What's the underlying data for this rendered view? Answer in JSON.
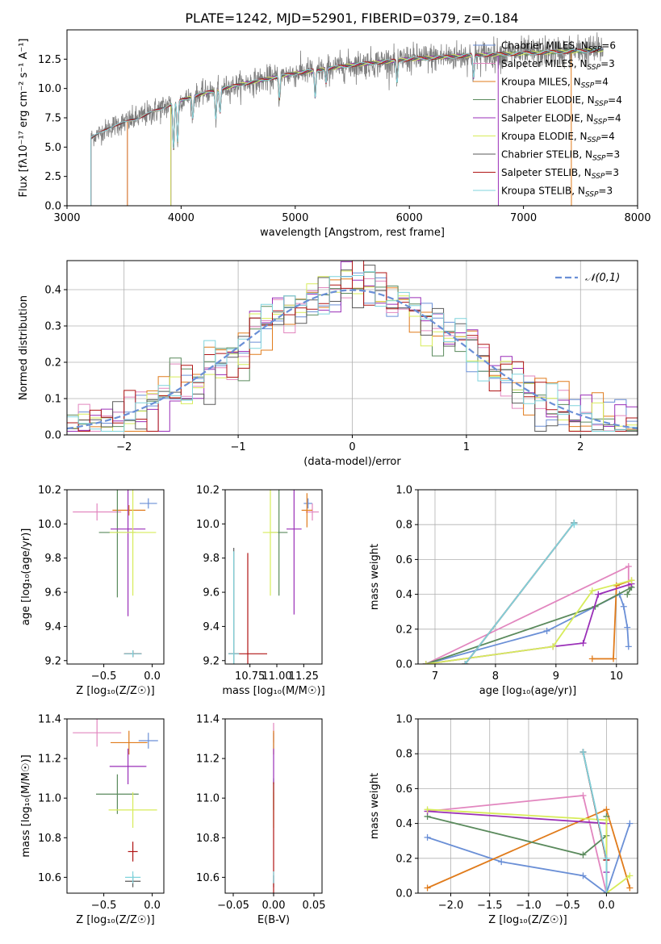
{
  "figure": {
    "title": "PLATE=1242, MJD=52901, FIBERID=0379, z=0.184"
  },
  "colors": {
    "Chabrier MILES": "#6a8fd6",
    "Salpeter MILES": "#e286bf",
    "Kroupa MILES": "#e07b1b",
    "Chabrier ELODIE": "#5a8a5c",
    "Salpeter ELODIE": "#9a2fb8",
    "Kroupa ELODIE": "#d7ec5a",
    "Chabrier STELIB": "#5a5a5a",
    "Salpeter STELIB": "#b01515",
    "Kroupa STELIB": "#7fd3dc"
  },
  "chart_data": [
    {
      "id": "spectrum",
      "type": "line",
      "title": "PLATE=1242, MJD=52901, FIBERID=0379, z=0.184",
      "xlabel": "wavelength [Angstrom, rest frame]",
      "ylabel": "Flux [fλ10⁻¹⁷ erg cm⁻² s⁻¹ A⁻¹]",
      "xlim": [
        3000,
        8000
      ],
      "ylim": [
        0,
        15
      ],
      "xticks": [
        "3000",
        "4000",
        "5000",
        "6000",
        "7000",
        "8000"
      ],
      "yticks": [
        "0.0",
        "2.5",
        "5.0",
        "7.5",
        "10.0",
        "12.5"
      ],
      "legend_position": "top-right",
      "legend": [
        {
          "label": "Chabrier MILES",
          "n": "6"
        },
        {
          "label": "Salpeter MILES",
          "n": "3"
        },
        {
          "label": "Kroupa MILES",
          "n": "4"
        },
        {
          "label": "Chabrier ELODIE",
          "n": "4"
        },
        {
          "label": "Salpeter ELODIE",
          "n": "4"
        },
        {
          "label": "Kroupa ELODIE",
          "n": "4"
        },
        {
          "label": "Chabrier STELIB",
          "n": "3"
        },
        {
          "label": "Salpeter STELIB",
          "n": "3"
        },
        {
          "label": "Kroupa STELIB",
          "n": "3"
        }
      ],
      "data_wavelength_range": [
        3210,
        7700
      ],
      "model_start_wavelength": {
        "MILES": 3530,
        "ELODIE": 3910,
        "STELIB": 3210
      },
      "model_drop_wavelength": {
        "Kroupa MILES": 7420,
        "Salpeter ELODIE": 6780
      },
      "continuum": {
        "x": [
          3210,
          3400,
          3600,
          3800,
          4000,
          4200,
          4500,
          5000,
          5500,
          6000,
          6500,
          7000,
          7500,
          7700
        ],
        "y": [
          5.8,
          6.8,
          7.4,
          8.2,
          9.0,
          9.6,
          10.3,
          11.3,
          12.0,
          12.5,
          12.8,
          13.0,
          13.2,
          13.3
        ]
      }
    },
    {
      "id": "residuals",
      "type": "histogram",
      "xlabel": "(data-model)/error",
      "ylabel": "Normed distribution",
      "xlim": [
        -2.5,
        2.5
      ],
      "ylim": [
        0,
        0.48
      ],
      "xticks": [
        "-2",
        "-1",
        "0",
        "1",
        "2"
      ],
      "yticks": [
        "0.0",
        "0.1",
        "0.2",
        "0.3",
        "0.4"
      ],
      "grid": true,
      "legend_position": "top-right",
      "reference_label": "𝒩(0,1)",
      "bin_range": [
        -2.5,
        2.5
      ],
      "bin_count": 50
    },
    {
      "id": "age_vs_Z",
      "type": "scatter",
      "xlabel": "Z [log₁₀(Z/Z☉)]",
      "ylabel": "age  [log₁₀(age/yr)]",
      "xlim": [
        -0.88,
        0.12
      ],
      "ylim": [
        9.18,
        10.2
      ],
      "xticks": [
        "-0.5",
        "0.0"
      ],
      "yticks": [
        "9.2",
        "9.4",
        "9.6",
        "9.8",
        "10.0",
        "10.2"
      ],
      "series": [
        {
          "name": "Chabrier MILES",
          "x": -0.04,
          "y": 10.12,
          "xerr": 0.09,
          "yerr": 0.03
        },
        {
          "name": "Salpeter MILES",
          "x": -0.57,
          "y": 10.07,
          "xerr": 0.25,
          "yerr": 0.05
        },
        {
          "name": "Kroupa MILES",
          "x": -0.24,
          "y": 10.08,
          "xerr": 0.17,
          "yerr": 0.03
        },
        {
          "name": "Chabrier ELODIE",
          "x": -0.36,
          "y": 9.95,
          "xerr": 0.19,
          "yerr": 0.38
        },
        {
          "name": "Salpeter ELODIE",
          "x": -0.25,
          "y": 9.97,
          "xerr": 0.18,
          "yerr": 0.51
        },
        {
          "name": "Kroupa ELODIE",
          "x": -0.2,
          "y": 9.95,
          "xerr": 0.24,
          "yerr": 0.37
        },
        {
          "name": "Chabrier STELIB",
          "x": -0.2,
          "y": 9.24,
          "xerr": 0.09,
          "yerr": 0.02
        },
        {
          "name": "Salpeter STELIB",
          "x": -0.2,
          "y": 9.24,
          "xerr": 0.09,
          "yerr": 0.02
        },
        {
          "name": "Kroupa STELIB",
          "x": -0.2,
          "y": 9.24,
          "xerr": 0.09,
          "yerr": 0.02
        }
      ]
    },
    {
      "id": "age_vs_mass",
      "type": "scatter",
      "xlabel": "mass [log₁₀(M/M☉)]",
      "ylabel": "",
      "xlim": [
        10.52,
        11.42
      ],
      "ylim": [
        9.18,
        10.2
      ],
      "xticks": [
        "10.75",
        "11.00",
        "11.25"
      ],
      "yticks": [
        "9.2",
        "9.4",
        "9.6",
        "9.8",
        "10.0",
        "10.2"
      ],
      "series": [
        {
          "name": "Chabrier MILES",
          "x": 11.29,
          "y": 10.12,
          "xerr": 0.04,
          "yerr": 0.03
        },
        {
          "name": "Salpeter MILES",
          "x": 11.33,
          "y": 10.07,
          "xerr": 0.06,
          "yerr": 0.05
        },
        {
          "name": "Kroupa MILES",
          "x": 11.28,
          "y": 10.08,
          "xerr": 0.05,
          "yerr": 0.1
        },
        {
          "name": "Chabrier ELODIE",
          "x": 11.02,
          "y": 9.95,
          "xerr": 0.08,
          "yerr": 0.37
        },
        {
          "name": "Salpeter ELODIE",
          "x": 11.16,
          "y": 9.97,
          "xerr": 0.07,
          "yerr": 0.5
        },
        {
          "name": "Kroupa ELODIE",
          "x": 10.94,
          "y": 9.95,
          "xerr": 0.07,
          "yerr": 0.37
        },
        {
          "name": "Chabrier STELIB",
          "x": 10.6,
          "y": 9.24,
          "xerr": 0.05,
          "yerr": 0.62
        },
        {
          "name": "Salpeter STELIB",
          "x": 10.73,
          "y": 9.24,
          "xerr": 0.18,
          "yerr": 0.59
        },
        {
          "name": "Kroupa STELIB",
          "x": 10.6,
          "y": 9.24,
          "xerr": 0.05,
          "yerr": 0.6
        }
      ]
    },
    {
      "id": "weight_vs_age",
      "type": "line",
      "xlabel": "age  [log₁₀(age/yr)]",
      "ylabel": "mass weight",
      "xlim": [
        6.72,
        10.35
      ],
      "ylim": [
        0,
        1
      ],
      "xticks": [
        "7",
        "8",
        "9",
        "10"
      ],
      "yticks": [
        "0.0",
        "0.2",
        "0.4",
        "0.6",
        "0.8",
        "1.0"
      ],
      "grid": true,
      "series": [
        {
          "name": "Chabrier MILES",
          "x": [
            6.85,
            8.85,
            10.05,
            10.12,
            10.18,
            10.2
          ],
          "y": [
            0.0,
            0.19,
            0.4,
            0.33,
            0.21,
            0.1
          ]
        },
        {
          "name": "Salpeter MILES",
          "x": [
            6.85,
            10.2,
            10.2
          ],
          "y": [
            0.0,
            0.56,
            0.45
          ]
        },
        {
          "name": "Kroupa MILES",
          "x": [
            9.6,
            9.95,
            10.0,
            10.25
          ],
          "y": [
            0.03,
            0.03,
            0.45,
            0.48
          ]
        },
        {
          "name": "Chabrier ELODIE",
          "x": [
            6.85,
            9.65,
            10.25,
            10.18
          ],
          "y": [
            0.0,
            0.33,
            0.44,
            0.4
          ]
        },
        {
          "name": "Salpeter ELODIE",
          "x": [
            6.85,
            8.95,
            9.45,
            9.7,
            10.25
          ],
          "y": [
            0.0,
            0.1,
            0.12,
            0.4,
            0.46
          ]
        },
        {
          "name": "Kroupa ELODIE",
          "x": [
            6.85,
            8.95,
            9.6,
            10.25
          ],
          "y": [
            0.0,
            0.1,
            0.42,
            0.48
          ]
        },
        {
          "name": "Chabrier STELIB",
          "x": [
            7.5,
            9.3,
            9.3
          ],
          "y": [
            0.0,
            0.81,
            0.81
          ]
        },
        {
          "name": "Salpeter STELIB",
          "x": [
            7.5,
            9.3
          ],
          "y": [
            0.0,
            0.81
          ]
        },
        {
          "name": "Kroupa STELIB",
          "x": [
            7.5,
            9.3,
            9.3
          ],
          "y": [
            0.0,
            0.81,
            0.8
          ]
        }
      ]
    },
    {
      "id": "mass_vs_Z",
      "type": "scatter",
      "xlabel": "Z [log₁₀(Z/Z☉)]",
      "ylabel": "mass [log₁₀(M/M☉)]",
      "xlim": [
        -0.88,
        0.12
      ],
      "ylim": [
        10.52,
        11.4
      ],
      "xticks": [
        "-0.5",
        "0.0"
      ],
      "yticks": [
        "10.6",
        "10.8",
        "11.0",
        "11.2",
        "11.4"
      ],
      "series": [
        {
          "name": "Chabrier MILES",
          "x": -0.04,
          "y": 11.29,
          "xerr": 0.1,
          "yerr": 0.04
        },
        {
          "name": "Salpeter MILES",
          "x": -0.57,
          "y": 11.33,
          "xerr": 0.25,
          "yerr": 0.07
        },
        {
          "name": "Kroupa MILES",
          "x": -0.24,
          "y": 11.28,
          "xerr": 0.19,
          "yerr": 0.06
        },
        {
          "name": "Chabrier ELODIE",
          "x": -0.36,
          "y": 11.02,
          "xerr": 0.22,
          "yerr": 0.1
        },
        {
          "name": "Salpeter ELODIE",
          "x": -0.25,
          "y": 11.16,
          "xerr": 0.19,
          "yerr": 0.09
        },
        {
          "name": "Kroupa ELODIE",
          "x": -0.2,
          "y": 10.94,
          "xerr": 0.25,
          "yerr": 0.09
        },
        {
          "name": "Chabrier STELIB",
          "x": -0.2,
          "y": 10.58,
          "xerr": 0.08,
          "yerr": 0.03
        },
        {
          "name": "Salpeter STELIB",
          "x": -0.2,
          "y": 10.73,
          "xerr": 0.05,
          "yerr": 0.05
        },
        {
          "name": "Kroupa STELIB",
          "x": -0.2,
          "y": 10.6,
          "xerr": 0.08,
          "yerr": 0.03
        }
      ]
    },
    {
      "id": "mass_vs_EBV",
      "type": "scatter",
      "xlabel": "E(B-V)",
      "ylabel": "",
      "xlim": [
        -0.06,
        0.06
      ],
      "ylim": [
        10.52,
        11.4
      ],
      "xticks": [
        "-0.05",
        "0.00",
        "0.05"
      ],
      "yticks": [
        "10.6",
        "10.8",
        "11.0",
        "11.2",
        "11.4"
      ],
      "series": [
        {
          "name": "Chabrier MILES",
          "x": 0.0,
          "y": 11.29,
          "xerr": 0,
          "yerr": 0.04
        },
        {
          "name": "Salpeter MILES",
          "x": 0.0,
          "y": 11.33,
          "xerr": 0,
          "yerr": 0.05
        },
        {
          "name": "Kroupa MILES",
          "x": 0.0,
          "y": 11.28,
          "xerr": 0,
          "yerr": 0.06
        },
        {
          "name": "Chabrier ELODIE",
          "x": 0.0,
          "y": 11.02,
          "xerr": 0,
          "yerr": 0.08
        },
        {
          "name": "Salpeter ELODIE",
          "x": 0.0,
          "y": 11.16,
          "xerr": 0,
          "yerr": 0.09
        },
        {
          "name": "Kroupa ELODIE",
          "x": 0.0,
          "y": 10.94,
          "xerr": 0,
          "yerr": 0.09
        },
        {
          "name": "Chabrier STELIB",
          "x": 0.0,
          "y": 10.58,
          "xerr": 0,
          "yerr": 0.03
        },
        {
          "name": "Salpeter STELIB",
          "x": 0.0,
          "y": 10.73,
          "xerr": 0,
          "yerr": 0.35
        },
        {
          "name": "Kroupa STELIB",
          "x": 0.0,
          "y": 10.6,
          "xerr": 0,
          "yerr": 0.03
        }
      ]
    },
    {
      "id": "weight_vs_Z",
      "type": "line",
      "xlabel": "Z [log₁₀(Z/Z☉)]",
      "ylabel": "mass weight",
      "xlim": [
        -2.42,
        0.4
      ],
      "ylim": [
        0,
        1
      ],
      "xticks": [
        "-2.0",
        "-1.5",
        "-1.0",
        "-0.5",
        "0.0"
      ],
      "yticks": [
        "0.0",
        "0.2",
        "0.4",
        "0.6",
        "0.8",
        "1.0"
      ],
      "grid": true,
      "series": [
        {
          "name": "Chabrier MILES",
          "x": [
            -2.3,
            -1.35,
            -0.3,
            0.0,
            0.3
          ],
          "y": [
            0.32,
            0.18,
            0.1,
            0.0,
            0.4
          ]
        },
        {
          "name": "Salpeter MILES",
          "x": [
            -2.3,
            -0.3,
            0.0
          ],
          "y": [
            0.47,
            0.56,
            0.0
          ]
        },
        {
          "name": "Kroupa MILES",
          "x": [
            -2.3,
            0.0,
            0.3
          ],
          "y": [
            0.03,
            0.48,
            0.03
          ]
        },
        {
          "name": "Chabrier ELODIE",
          "x": [
            -2.3,
            -0.3,
            0.0,
            0.0
          ],
          "y": [
            0.44,
            0.22,
            0.33,
            0.44
          ]
        },
        {
          "name": "Salpeter ELODIE",
          "x": [
            -2.3,
            0.0,
            0.0
          ],
          "y": [
            0.47,
            0.4,
            0.12
          ]
        },
        {
          "name": "Kroupa ELODIE",
          "x": [
            -2.3,
            0.0,
            0.0,
            0.3
          ],
          "y": [
            0.48,
            0.42,
            0.0,
            0.1
          ]
        },
        {
          "name": "Chabrier STELIB",
          "x": [
            -0.3,
            0.0,
            0.0
          ],
          "y": [
            0.81,
            0.19,
            0.0
          ]
        },
        {
          "name": "Salpeter STELIB",
          "x": [
            -0.3,
            0.0
          ],
          "y": [
            0.81,
            0.19
          ]
        },
        {
          "name": "Kroupa STELIB",
          "x": [
            -0.3,
            0.0,
            0.0
          ],
          "y": [
            0.81,
            0.2,
            0.0
          ]
        }
      ]
    }
  ]
}
